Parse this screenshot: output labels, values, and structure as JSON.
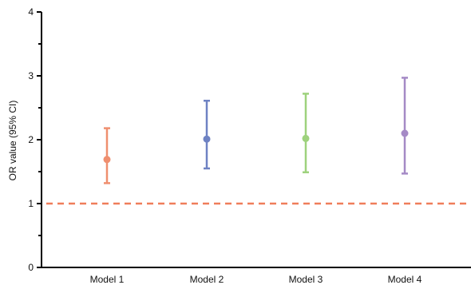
{
  "chart_data": {
    "type": "errorbar",
    "ylabel": "OR value (95% CI)",
    "ylim": [
      0,
      4
    ],
    "yticks": [
      "0",
      "1",
      "2",
      "3",
      "4"
    ],
    "minor_ticks": true,
    "grid": false,
    "reference_line": {
      "y": 1,
      "style": "dashed",
      "color": "#ef7d5a"
    },
    "categories": [
      "Model 1",
      "Model 2",
      "Model 3",
      "Model 4"
    ],
    "points": [
      {
        "category": "Model 1",
        "value": 1.69,
        "lower": 1.32,
        "upper": 2.18,
        "color": "#ef8f6f"
      },
      {
        "category": "Model 2",
        "value": 2.01,
        "lower": 1.55,
        "upper": 2.61,
        "color": "#6e82c3"
      },
      {
        "category": "Model 3",
        "value": 2.02,
        "lower": 1.49,
        "upper": 2.72,
        "color": "#9ed27d"
      },
      {
        "category": "Model 4",
        "value": 2.1,
        "lower": 1.47,
        "upper": 2.97,
        "color": "#a58ac6"
      }
    ]
  }
}
